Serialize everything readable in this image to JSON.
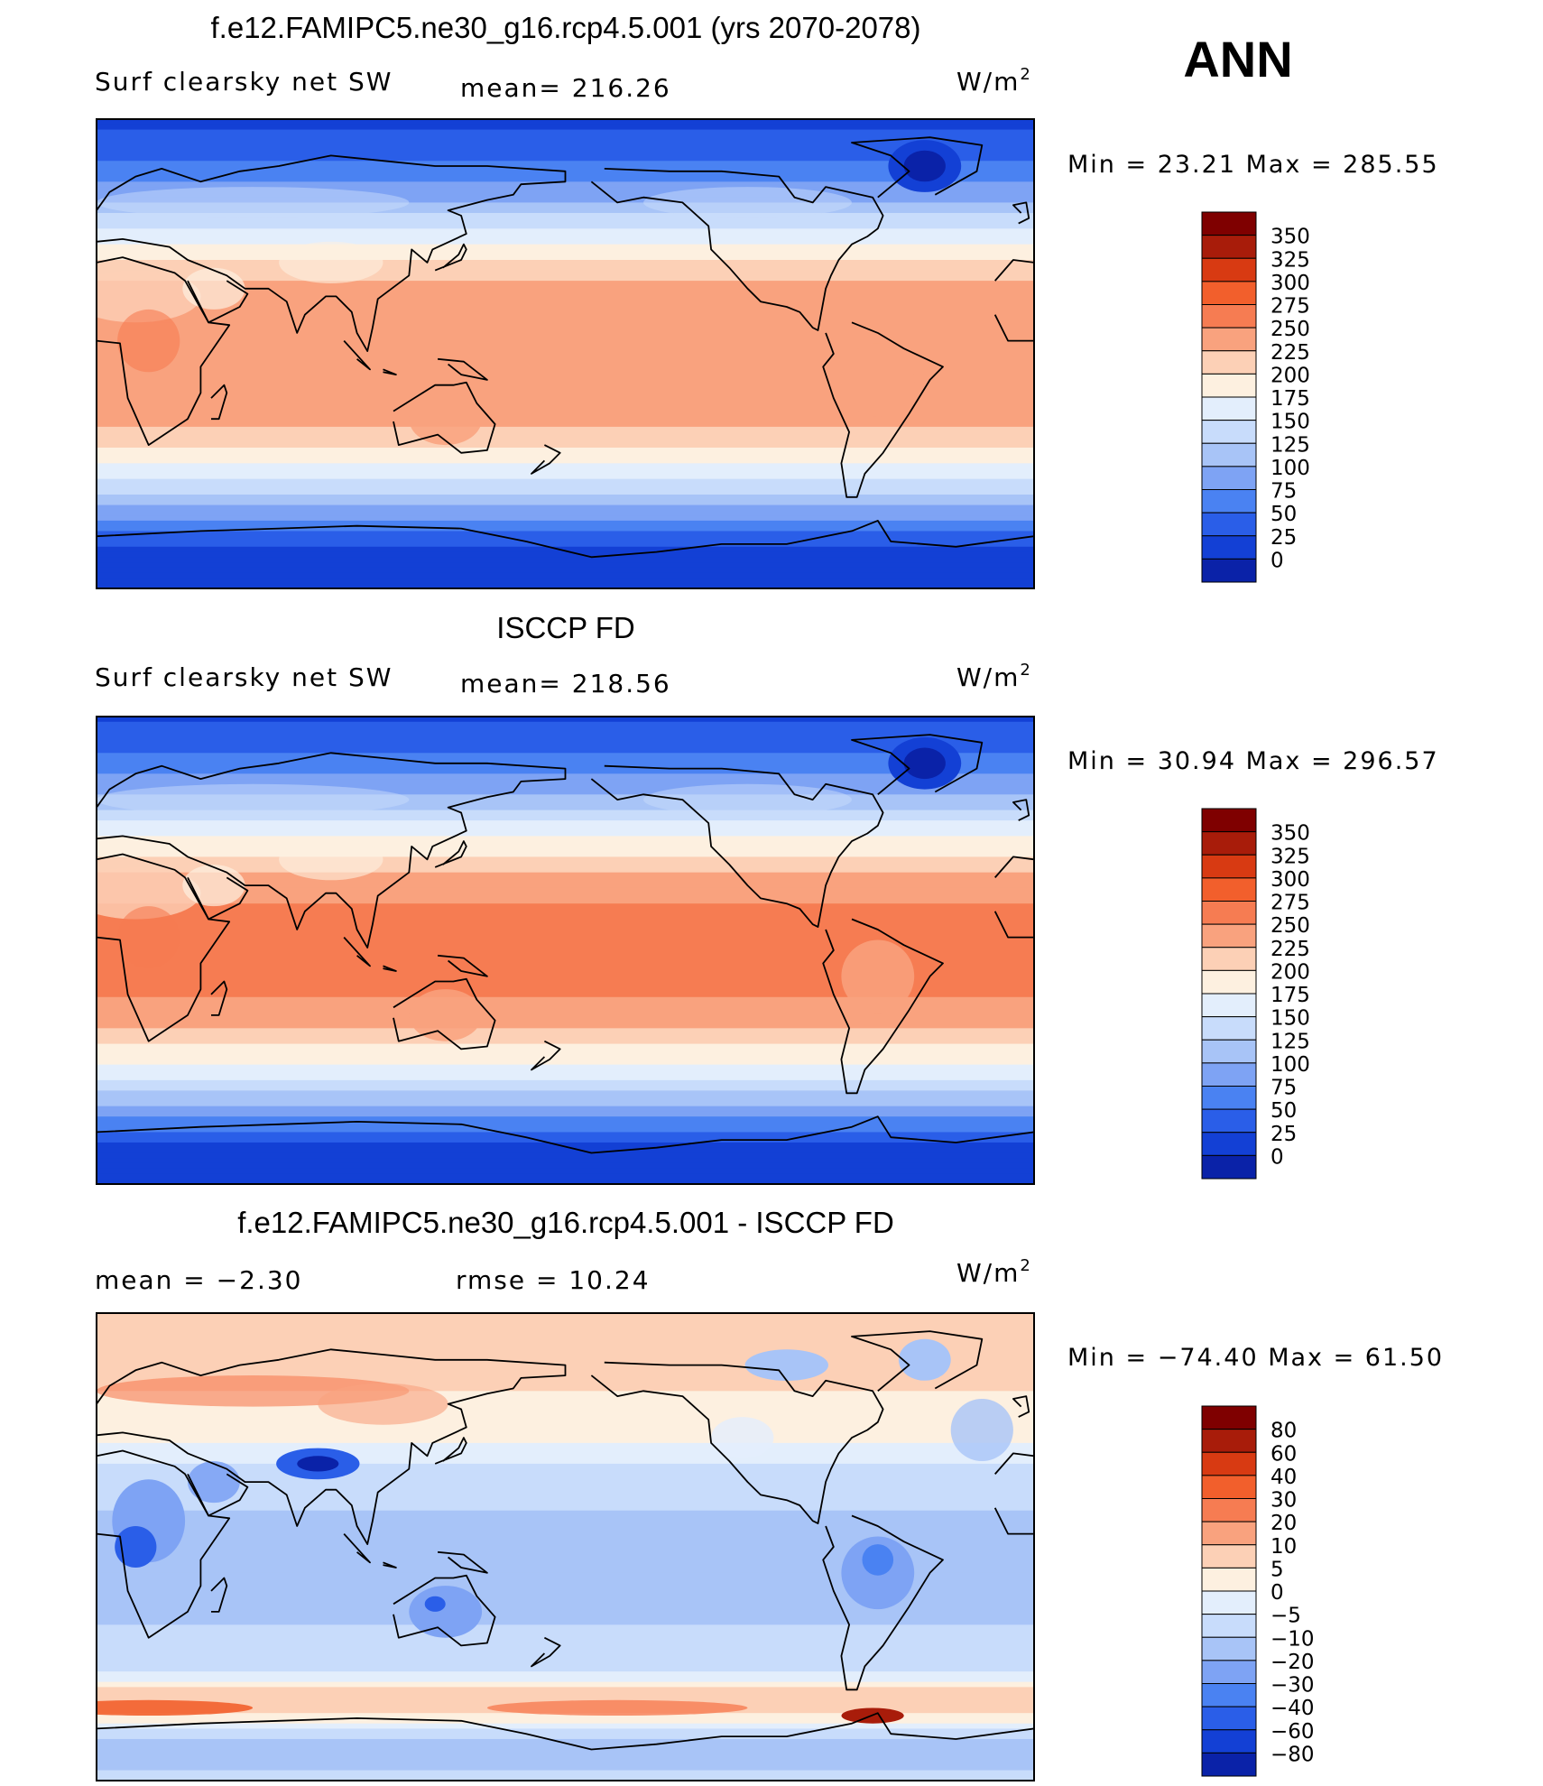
{
  "season_label": "ANN",
  "colors": {
    "abs_scale": [
      "#00007f",
      "#0a22a8",
      "#1340d5",
      "#2a5ee8",
      "#4a82f2",
      "#7ea3f4",
      "#a8c4f7",
      "#c8dcfb",
      "#e3eefc",
      "#fdf0e0",
      "#fcd0b6",
      "#f9a27e",
      "#f67c52",
      "#f25f2c",
      "#d83a12",
      "#a81c0a",
      "#7f0000"
    ],
    "diff_scale": [
      "#00007f",
      "#0a22a8",
      "#1340d5",
      "#2a5ee8",
      "#4a82f2",
      "#7ea3f4",
      "#a8c4f7",
      "#c8dcfb",
      "#e3eefc",
      "#fdf0e0",
      "#fcd0b6",
      "#f9a27e",
      "#f67c52",
      "#f25f2c",
      "#d83a12",
      "#a81c0a",
      "#7f0000"
    ],
    "coastline": "#000000"
  },
  "panels": [
    {
      "title": "f.e12.FAMIPC5.ne30_g16.rcp4.5.001 (yrs 2070-2078)",
      "left_label": "Surf clearsky net SW",
      "center_label": "mean= 216.26",
      "units": "W/m",
      "units_sup": "2",
      "minmax": "Min =   23.21  Max  =  285.55",
      "colorbar_labels": [
        "350",
        "325",
        "300",
        "275",
        "250",
        "225",
        "200",
        "175",
        "150",
        "125",
        "100",
        "75",
        "50",
        "25",
        "0"
      ]
    },
    {
      "title": "ISCCP FD",
      "left_label": "Surf clearsky net SW",
      "center_label": "mean= 218.56",
      "units": "W/m",
      "units_sup": "2",
      "minmax": "Min =   30.94  Max  =  296.57",
      "colorbar_labels": [
        "350",
        "325",
        "300",
        "275",
        "250",
        "225",
        "200",
        "175",
        "150",
        "125",
        "100",
        "75",
        "50",
        "25",
        "0"
      ]
    },
    {
      "title": "f.e12.FAMIPC5.ne30_g16.rcp4.5.001 - ISCCP FD",
      "left_label": "mean  =    −2.30",
      "center_label": "rmse  =    10.24",
      "units": "W/m",
      "units_sup": "2",
      "minmax": "Min  =  −74.40  Max  =    61.50",
      "colorbar_labels": [
        "80",
        "60",
        "40",
        "30",
        "20",
        "10",
        "5",
        "0",
        "−5",
        "−10",
        "−20",
        "−30",
        "−40",
        "−60",
        "−80"
      ]
    }
  ],
  "chart_data": [
    {
      "type": "heatmap",
      "title": "f.e12.FAMIPC5.ne30_g16.rcp4.5.001 (yrs 2070-2078)",
      "variable": "Surf clearsky net SW",
      "units": "W/m2",
      "mean": 216.26,
      "min": 23.21,
      "max": 285.55,
      "contour_levels": [
        0,
        25,
        50,
        75,
        100,
        125,
        150,
        175,
        200,
        225,
        250,
        275,
        300,
        325,
        350
      ],
      "zonal_profile": {
        "lat": [
          90,
          75,
          60,
          45,
          30,
          15,
          0,
          -15,
          -30,
          -45,
          -60,
          -75,
          -90
        ],
        "values": [
          40,
          70,
          120,
          190,
          245,
          270,
          275,
          270,
          245,
          190,
          120,
          40,
          25
        ]
      }
    },
    {
      "type": "heatmap",
      "title": "ISCCP FD",
      "variable": "Surf clearsky net SW",
      "units": "W/m2",
      "mean": 218.56,
      "min": 30.94,
      "max": 296.57,
      "contour_levels": [
        0,
        25,
        50,
        75,
        100,
        125,
        150,
        175,
        200,
        225,
        250,
        275,
        300,
        325,
        350
      ],
      "zonal_profile": {
        "lat": [
          90,
          75,
          60,
          45,
          30,
          15,
          0,
          -15,
          -30,
          -45,
          -60,
          -75,
          -90
        ],
        "values": [
          45,
          75,
          125,
          195,
          250,
          280,
          285,
          280,
          250,
          195,
          125,
          45,
          30
        ]
      }
    },
    {
      "type": "heatmap",
      "title": "f.e12.FAMIPC5.ne30_g16.rcp4.5.001 - ISCCP FD",
      "units": "W/m2",
      "mean": -2.3,
      "rmse": 10.24,
      "min": -74.4,
      "max": 61.5,
      "contour_levels": [
        -80,
        -60,
        -40,
        -30,
        -20,
        -10,
        -5,
        0,
        5,
        10,
        20,
        30,
        40,
        60,
        80
      ],
      "zonal_profile": {
        "lat": [
          90,
          75,
          60,
          45,
          30,
          15,
          0,
          -15,
          -30,
          -45,
          -60,
          -75,
          -90
        ],
        "values": [
          20,
          12,
          10,
          8,
          -2,
          -5,
          -8,
          -8,
          -5,
          -4,
          18,
          -8,
          -4
        ]
      }
    }
  ]
}
